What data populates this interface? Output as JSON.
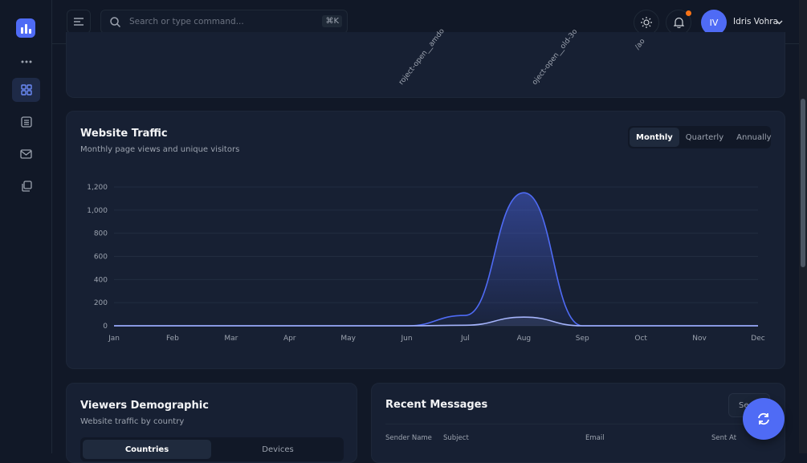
{
  "header": {
    "search_placeholder": "Search or type command...",
    "shortcut": "⌘K",
    "avatar_initials": "IV",
    "user_name": "Idris Vohra"
  },
  "top_card": {
    "axis_labels": [
      "roject-open__amdo",
      "oject-open__old-3o",
      "/ao"
    ]
  },
  "traffic": {
    "title": "Website Traffic",
    "subtitle": "Monthly page views and unique visitors",
    "periods": [
      "Monthly",
      "Quarterly",
      "Annually"
    ],
    "active_period": "Monthly"
  },
  "chart_data": {
    "type": "area",
    "categories": [
      "Jan",
      "Feb",
      "Mar",
      "Apr",
      "May",
      "Jun",
      "Jul",
      "Aug",
      "Sep",
      "Oct",
      "Nov",
      "Dec"
    ],
    "series": [
      {
        "values": [
          0,
          0,
          0,
          0,
          0,
          0,
          90,
          1150,
          0,
          0,
          0,
          0
        ],
        "color": "#4f6bf5"
      },
      {
        "values": [
          0,
          0,
          0,
          0,
          0,
          0,
          5,
          75,
          0,
          0,
          0,
          0
        ],
        "color": "#a5b4fc"
      }
    ],
    "yticks": [
      "0",
      "200",
      "400",
      "600",
      "800",
      "1,000",
      "1,200"
    ],
    "ylim": [
      0,
      1200
    ],
    "grid": true
  },
  "demographic": {
    "title": "Viewers Demographic",
    "subtitle": "Website traffic by country",
    "tabs": [
      "Countries",
      "Devices"
    ]
  },
  "messages": {
    "title": "Recent Messages",
    "see_all": "See all",
    "columns": [
      "Sender Name",
      "Subject",
      "Email",
      "Sent At"
    ]
  },
  "colors": {
    "accent": "#4f6bf5",
    "notification": "#f97316"
  }
}
